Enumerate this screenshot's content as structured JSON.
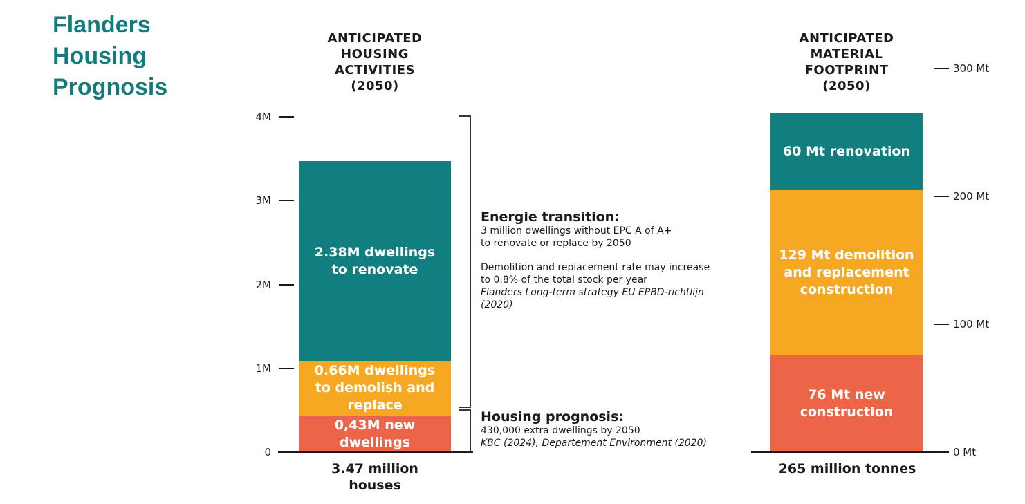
{
  "title_lines": [
    "Flanders",
    "Housing",
    "Prognosis"
  ],
  "chart_data": [
    {
      "type": "bar",
      "stacked": true,
      "title_lines": [
        "ANTICIPATED",
        "HOUSING",
        "ACTIVITIES",
        "(2050)"
      ],
      "ylim": [
        0,
        4000000
      ],
      "yticks": [
        {
          "value": 0,
          "label": "0"
        },
        {
          "value": 1000000,
          "label": "1M"
        },
        {
          "value": 2000000,
          "label": "2M"
        },
        {
          "value": 3000000,
          "label": "3M"
        },
        {
          "value": 4000000,
          "label": "4M"
        }
      ],
      "series": [
        {
          "value": 430000,
          "color": "#ec6548",
          "label_lines": [
            "0,43M new",
            "dwellings"
          ]
        },
        {
          "value": 660000,
          "color": "#f6a823",
          "label_lines": [
            "0.66M dwellings",
            "to demolish and",
            "replace"
          ]
        },
        {
          "value": 2380000,
          "color": "#117e80",
          "label_lines": [
            "2.38M dwellings",
            "to renovate"
          ]
        }
      ],
      "total_lines": [
        "3.47 million",
        "houses"
      ]
    },
    {
      "type": "bar",
      "stacked": true,
      "title_lines": [
        "ANTICIPATED",
        "MATERIAL",
        "FOOTPRINT",
        "(2050)"
      ],
      "ylim": [
        0,
        300
      ],
      "yunit": "Mt",
      "yticks": [
        {
          "value": 0,
          "label": "0 Mt"
        },
        {
          "value": 100,
          "label": "100 Mt"
        },
        {
          "value": 200,
          "label": "200 Mt"
        },
        {
          "value": 300,
          "label": "300 Mt"
        }
      ],
      "series": [
        {
          "value": 76,
          "color": "#ec6548",
          "label_lines": [
            "76 Mt new",
            "construction"
          ]
        },
        {
          "value": 129,
          "color": "#f6a823",
          "label_lines": [
            "129 Mt demolition",
            "and replacement",
            "construction"
          ]
        },
        {
          "value": 60,
          "color": "#117e80",
          "label_lines": [
            "60 Mt renovation"
          ]
        }
      ],
      "total_lines": [
        "265 million tonnes"
      ]
    }
  ],
  "annotations": {
    "energy": {
      "title": "Energie transition:",
      "line1": "3 million dwellings without EPC A of A+",
      "line2": "to renovate or replace by 2050",
      "line3": "Demolition and replacement rate may increase",
      "line4": "to 0.8% of the total stock per year",
      "source1": "Flanders Long-term strategy EU EPBD-richtlijn",
      "source2": "(2020)"
    },
    "housing": {
      "title": "Housing prognosis:",
      "line1": "430,000 extra dwellings by 2050",
      "source": "KBC (2024), Departement Environment (2020)"
    }
  }
}
